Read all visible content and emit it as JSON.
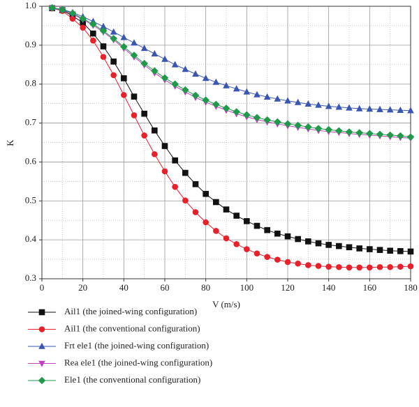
{
  "chart_data": {
    "type": "line",
    "xlabel": "V (m/s)",
    "ylabel": "K",
    "x": [
      5,
      10,
      15,
      20,
      25,
      30,
      35,
      40,
      45,
      50,
      55,
      60,
      65,
      70,
      75,
      80,
      85,
      90,
      95,
      100,
      105,
      110,
      115,
      120,
      125,
      130,
      135,
      140,
      145,
      150,
      155,
      160,
      165,
      170,
      175,
      180
    ],
    "xlim": [
      0,
      180
    ],
    "xticks": [
      0,
      20,
      40,
      60,
      80,
      100,
      120,
      140,
      160,
      180
    ],
    "ylim": [
      0.3,
      1.0
    ],
    "yticks": [
      0.3,
      0.4,
      0.5,
      0.6,
      0.7,
      0.8,
      0.9,
      {
        "value": 1.0,
        "label": "1.0"
      }
    ],
    "grid": true,
    "series": [
      {
        "name": "Ail1 (the joined-wing configuration)",
        "color": "#111111",
        "marker": "square",
        "values": [
          0.995,
          0.99,
          0.975,
          0.958,
          0.93,
          0.897,
          0.858,
          0.815,
          0.768,
          0.724,
          0.681,
          0.641,
          0.604,
          0.572,
          0.543,
          0.518,
          0.497,
          0.478,
          0.462,
          0.448,
          0.436,
          0.425,
          0.416,
          0.409,
          0.402,
          0.396,
          0.391,
          0.387,
          0.384,
          0.381,
          0.378,
          0.376,
          0.374,
          0.372,
          0.371,
          0.37
        ]
      },
      {
        "name": "Ail1 (the conventional configuration)",
        "color": "#e8202a",
        "marker": "circle",
        "values": [
          0.995,
          0.988,
          0.968,
          0.945,
          0.912,
          0.87,
          0.823,
          0.772,
          0.72,
          0.668,
          0.62,
          0.576,
          0.536,
          0.501,
          0.471,
          0.445,
          0.423,
          0.404,
          0.389,
          0.376,
          0.365,
          0.356,
          0.349,
          0.343,
          0.339,
          0.335,
          0.333,
          0.331,
          0.33,
          0.329,
          0.329,
          0.329,
          0.33,
          0.33,
          0.331,
          0.332
        ]
      },
      {
        "name": "Frt ele1 (the joined-wing configuration)",
        "color": "#3a56b0",
        "marker": "triangle-up",
        "values": [
          0.996,
          0.992,
          0.984,
          0.973,
          0.961,
          0.948,
          0.934,
          0.92,
          0.906,
          0.892,
          0.878,
          0.864,
          0.85,
          0.838,
          0.826,
          0.815,
          0.805,
          0.796,
          0.788,
          0.78,
          0.773,
          0.767,
          0.762,
          0.757,
          0.753,
          0.749,
          0.746,
          0.743,
          0.741,
          0.739,
          0.737,
          0.736,
          0.735,
          0.734,
          0.733,
          0.732
        ]
      },
      {
        "name": "Rea ele1 (the joined-wing configuration)",
        "color": "#c040c0",
        "marker": "triangle-down",
        "values": [
          0.995,
          0.99,
          0.98,
          0.966,
          0.951,
          0.934,
          0.914,
          0.892,
          0.87,
          0.849,
          0.829,
          0.811,
          0.795,
          0.78,
          0.766,
          0.754,
          0.743,
          0.733,
          0.724,
          0.716,
          0.709,
          0.703,
          0.698,
          0.693,
          0.689,
          0.685,
          0.681,
          0.678,
          0.676,
          0.673,
          0.671,
          0.669,
          0.667,
          0.665,
          0.663,
          0.661
        ]
      },
      {
        "name": "Ele1 (the conventional configuration)",
        "color": "#1e9a4a",
        "marker": "diamond",
        "values": [
          0.996,
          0.991,
          0.982,
          0.968,
          0.954,
          0.937,
          0.917,
          0.896,
          0.874,
          0.853,
          0.834,
          0.816,
          0.8,
          0.785,
          0.771,
          0.759,
          0.748,
          0.738,
          0.729,
          0.721,
          0.714,
          0.708,
          0.703,
          0.698,
          0.694,
          0.69,
          0.686,
          0.683,
          0.68,
          0.677,
          0.675,
          0.673,
          0.671,
          0.669,
          0.667,
          0.664
        ]
      }
    ]
  }
}
